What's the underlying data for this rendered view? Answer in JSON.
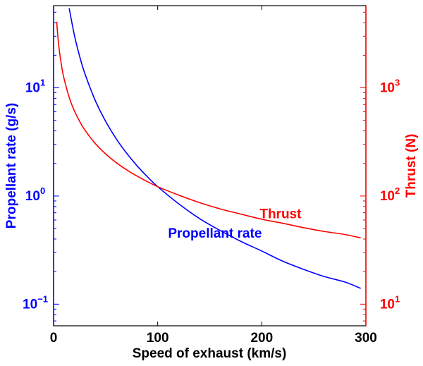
{
  "chart_data": {
    "type": "line",
    "xlabel": "Speed of exhaust (km/s)",
    "xlim": [
      0,
      300
    ],
    "xticks": [
      0,
      100,
      200,
      300
    ],
    "left_axis": {
      "label": "Propellant rate (g/s)",
      "scale": "log",
      "ylim": [
        0.0631,
        57.5
      ],
      "ticks": [
        {
          "value": 0.1,
          "base": "10",
          "exp": "−1"
        },
        {
          "value": 1,
          "base": "10",
          "exp": "0"
        },
        {
          "value": 10,
          "base": "10",
          "exp": "1"
        }
      ],
      "color": "#0000ff"
    },
    "right_axis": {
      "label": "Thrust (N)",
      "scale": "log",
      "ylim": [
        6.31,
        5750
      ],
      "ticks": [
        {
          "value": 10,
          "base": "10",
          "exp": "1"
        },
        {
          "value": 100,
          "base": "10",
          "exp": "2"
        },
        {
          "value": 1000,
          "base": "10",
          "exp": "3"
        }
      ],
      "color": "#ff0000"
    },
    "series": [
      {
        "name": "Propellant rate",
        "axis": "left",
        "color": "#0000ff",
        "x": [
          15,
          20,
          25,
          30,
          40,
          50,
          60,
          70,
          80,
          90,
          100,
          120,
          140,
          160,
          180,
          200,
          220,
          240,
          260,
          280,
          295
        ],
        "y": [
          54.4,
          30.6,
          19.6,
          13.6,
          7.65,
          4.9,
          3.4,
          2.5,
          1.91,
          1.51,
          1.22,
          0.85,
          0.62,
          0.48,
          0.38,
          0.31,
          0.25,
          0.21,
          0.18,
          0.16,
          0.14
        ]
      },
      {
        "name": "Thrust",
        "axis": "right",
        "color": "#ff0000",
        "x": [
          3,
          4,
          5,
          6,
          8,
          10,
          15,
          20,
          25,
          30,
          40,
          50,
          60,
          70,
          80,
          90,
          100,
          120,
          140,
          160,
          180,
          200,
          220,
          240,
          260,
          280,
          295
        ],
        "y": [
          4080,
          3060,
          2450,
          2040,
          1530,
          1224,
          816,
          612,
          490,
          408,
          306,
          245,
          204,
          175,
          153,
          136,
          122,
          102,
          87,
          76,
          68,
          61,
          56,
          51,
          47,
          44,
          41
        ]
      }
    ],
    "annotations": [
      {
        "text": "Thrust",
        "x": 218,
        "y_right": 68,
        "color": "#ff0000"
      },
      {
        "text": "Propellant rate",
        "x": 155,
        "y_left": 0.45,
        "color": "#0000ff"
      }
    ],
    "grid": false,
    "legend": "none"
  }
}
